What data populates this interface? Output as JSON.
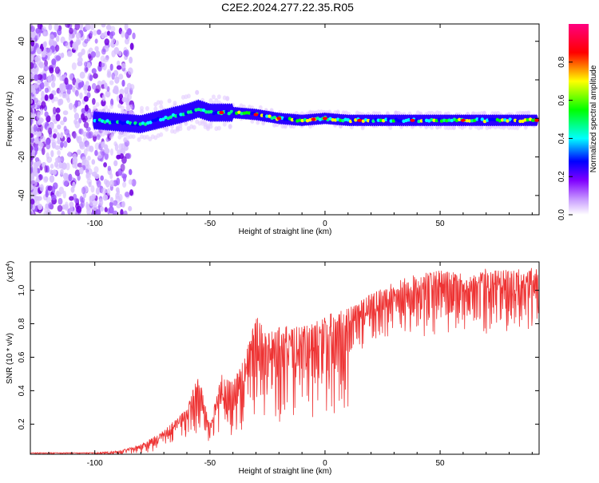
{
  "title": "C2E2.2024.277.22.35.R05",
  "chart_data": [
    {
      "type": "heatmap",
      "xlabel": "Height of straight line (km)",
      "ylabel": "Frequency (Hz)",
      "xlim": [
        -128,
        93
      ],
      "ylim": [
        -50,
        49
      ],
      "x_ticks": [
        -100,
        -50,
        0,
        50
      ],
      "y_ticks": [
        -40,
        -20,
        0,
        20,
        40
      ],
      "colorbar": {
        "label": "Normalized spectral amplitude",
        "range": [
          0,
          1
        ],
        "ticks": [
          "0.0",
          "0.2",
          "0.4",
          "0.6",
          "0.8"
        ],
        "colors": [
          "#ffffff",
          "#a000ff",
          "#0000ff",
          "#00ffff",
          "#00ff00",
          "#ffff00",
          "#ff0000",
          "#ff0080"
        ]
      },
      "ridge": [
        {
          "x": -100,
          "y": -1
        },
        {
          "x": -90,
          "y": -2
        },
        {
          "x": -80,
          "y": -3
        },
        {
          "x": -70,
          "y": 0
        },
        {
          "x": -60,
          "y": 3
        },
        {
          "x": -55,
          "y": 5
        },
        {
          "x": -50,
          "y": 3
        },
        {
          "x": -40,
          "y": 3
        },
        {
          "x": -30,
          "y": 2
        },
        {
          "x": -20,
          "y": 0
        },
        {
          "x": -10,
          "y": -1
        },
        {
          "x": 0,
          "y": 0
        },
        {
          "x": 10,
          "y": -1
        },
        {
          "x": 30,
          "y": -1
        },
        {
          "x": 60,
          "y": -1
        },
        {
          "x": 92,
          "y": -1
        }
      ]
    },
    {
      "type": "line",
      "xlabel": "Height of straight line (km)",
      "ylabel": "SNR (10 * v/v)",
      "y_multiplier": "(x10",
      "y_multiplier_exp": "4",
      "xlim": [
        -128,
        93
      ],
      "ylim": [
        0.02,
        1.17
      ],
      "x_ticks": [
        -100,
        -50,
        0,
        50
      ],
      "y_ticks": [
        "0.2",
        "0.4",
        "0.6",
        "0.8",
        "1.0"
      ],
      "series": [
        {
          "color": "#ee3333",
          "envelope": [
            {
              "x": -128,
              "y": 0.03
            },
            {
              "x": -100,
              "y": 0.03
            },
            {
              "x": -90,
              "y": 0.04
            },
            {
              "x": -80,
              "y": 0.08
            },
            {
              "x": -70,
              "y": 0.16
            },
            {
              "x": -60,
              "y": 0.3
            },
            {
              "x": -55,
              "y": 0.5
            },
            {
              "x": -50,
              "y": 0.2
            },
            {
              "x": -45,
              "y": 0.5
            },
            {
              "x": -40,
              "y": 0.45
            },
            {
              "x": -35,
              "y": 0.6
            },
            {
              "x": -30,
              "y": 0.85
            },
            {
              "x": -25,
              "y": 0.75
            },
            {
              "x": -20,
              "y": 0.8
            },
            {
              "x": -10,
              "y": 0.78
            },
            {
              "x": 0,
              "y": 0.85
            },
            {
              "x": 10,
              "y": 0.9
            },
            {
              "x": 20,
              "y": 0.98
            },
            {
              "x": 30,
              "y": 1.05
            },
            {
              "x": 40,
              "y": 1.1
            },
            {
              "x": 50,
              "y": 1.12
            },
            {
              "x": 60,
              "y": 1.1
            },
            {
              "x": 70,
              "y": 1.13
            },
            {
              "x": 80,
              "y": 1.12
            },
            {
              "x": 92,
              "y": 1.14
            }
          ]
        }
      ]
    }
  ]
}
